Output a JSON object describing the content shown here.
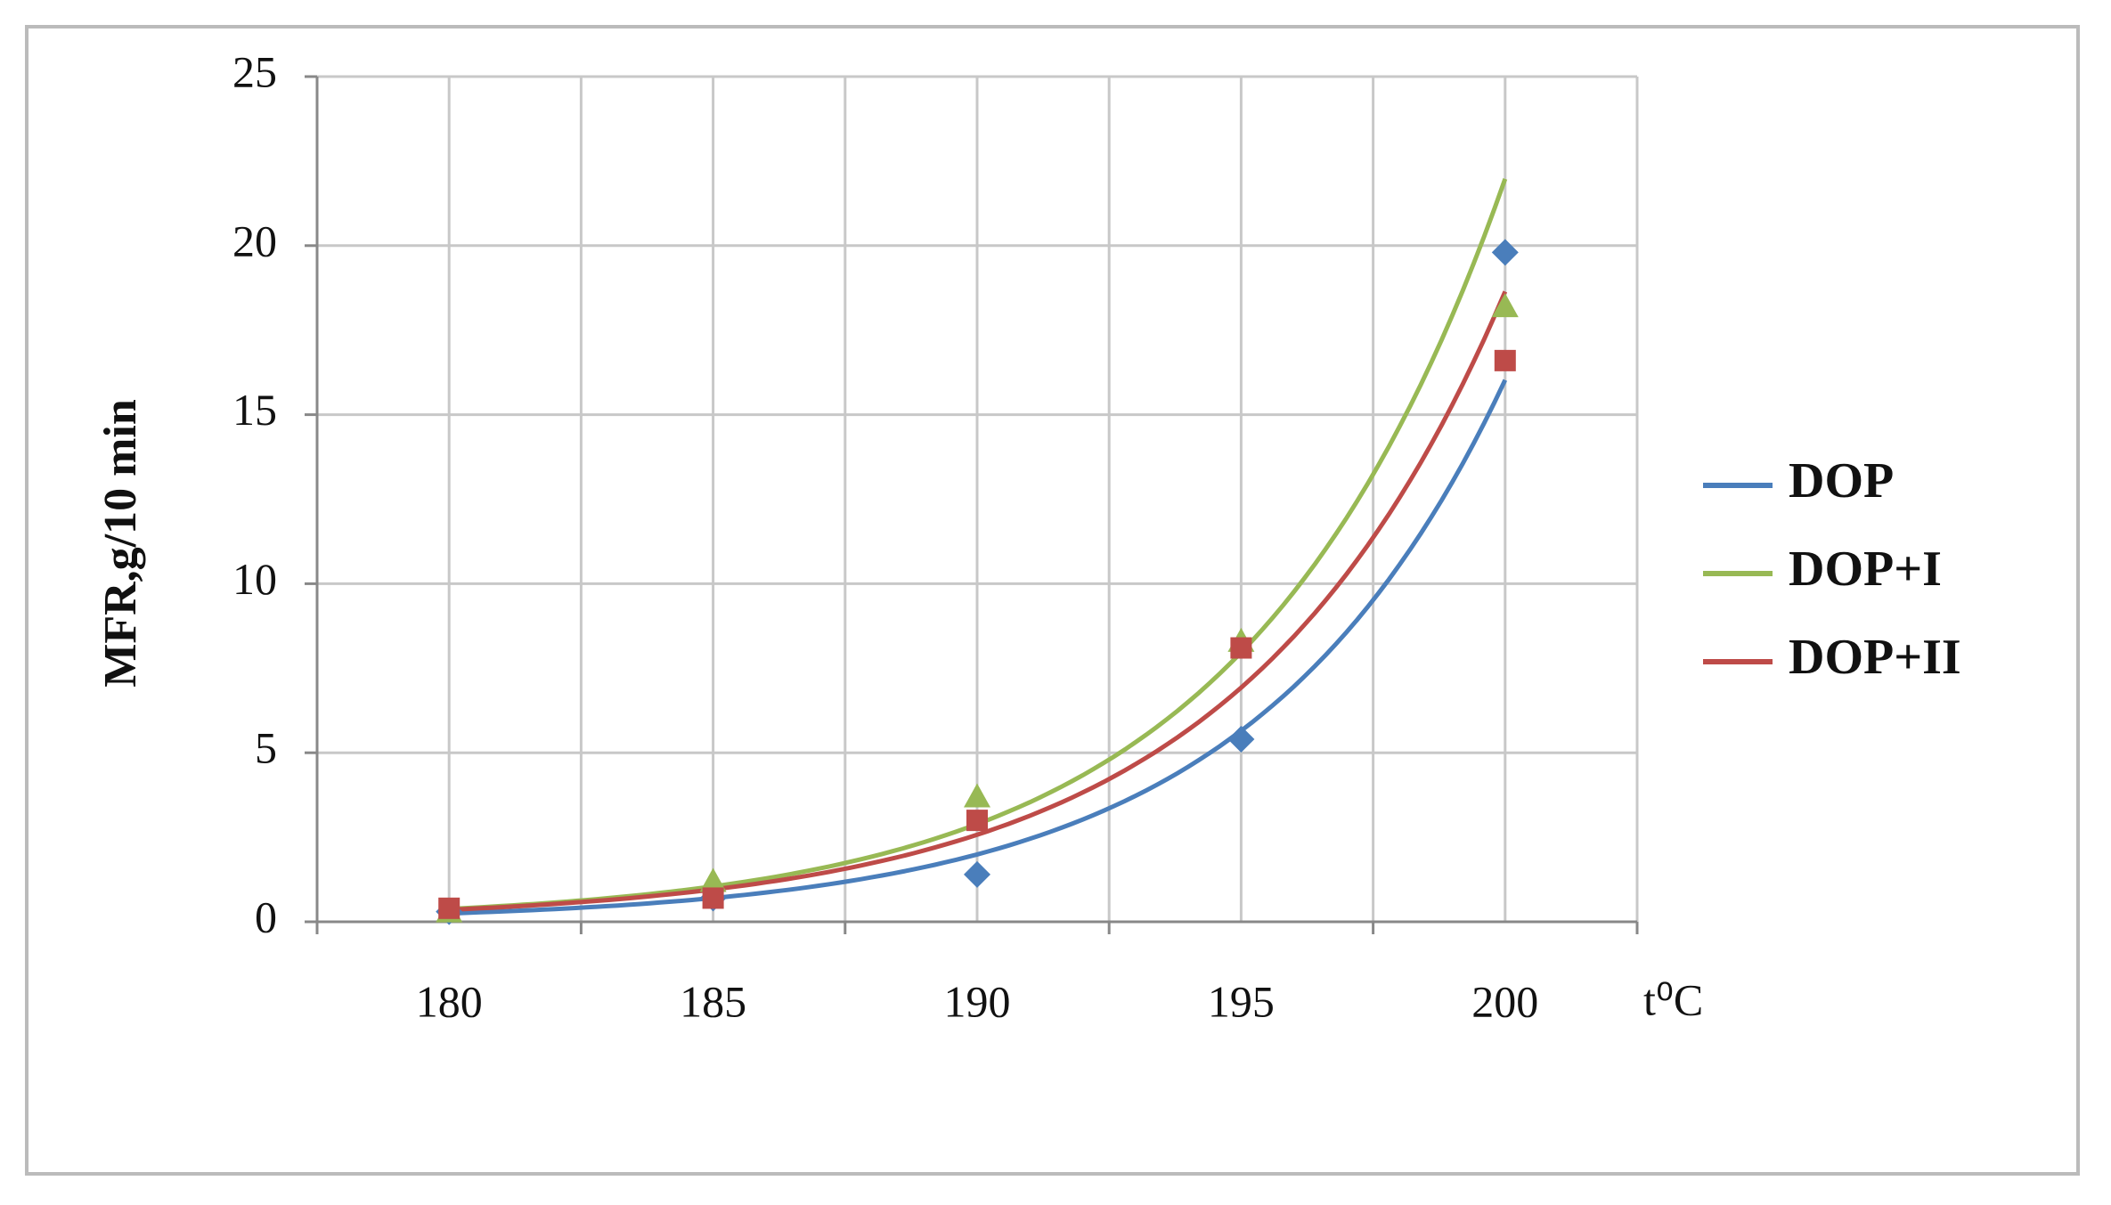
{
  "chart_data": {
    "type": "line",
    "x_label": "t⁰C",
    "y_label": "MFR,g/10 min",
    "categories": [
      "180",
      "185",
      "190",
      "195",
      "200"
    ],
    "series": [
      {
        "name": "DOP",
        "color": "#4a7ebb",
        "marker": "diamond",
        "values": [
          0.3,
          0.7,
          1.4,
          5.4,
          19.8
        ]
      },
      {
        "name": "DOP+I",
        "color": "#98b954",
        "marker": "triangle",
        "values": [
          0.3,
          1.2,
          3.7,
          8.3,
          18.2
        ]
      },
      {
        "name": "DOP+II",
        "color": "#be4b48",
        "marker": "square",
        "values": [
          0.4,
          0.7,
          3.0,
          8.1,
          16.6
        ]
      }
    ],
    "trendline": "exponential",
    "ylim": [
      0,
      25
    ],
    "yticks": [
      0,
      5,
      10,
      15,
      20,
      25
    ],
    "grid": true,
    "legend": "right"
  }
}
